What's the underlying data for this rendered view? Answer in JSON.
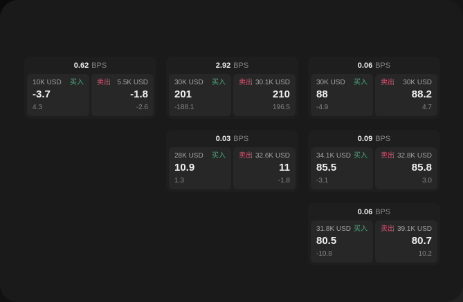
{
  "colors": {
    "page_bg": "#1a1a1a",
    "card_bg": "#1e1e1e",
    "tile_bg": "#272727",
    "buy_green": "#3fae7a",
    "sell_red": "#cf5570",
    "text_primary": "#f0f0f0",
    "text_secondary": "#a3a3a3",
    "text_muted": "#858585"
  },
  "labels": {
    "bps_unit": "BPS",
    "buy": "买入",
    "sell": "卖出"
  },
  "cards": [
    {
      "bps": "0.62",
      "buy": {
        "amount": "10K USD",
        "price": "-3.7",
        "change": "4.3"
      },
      "sell": {
        "amount": "5.5K USD",
        "price": "-1.8",
        "change": "-2.6"
      }
    },
    {
      "bps": "2.92",
      "buy": {
        "amount": "30K USD",
        "price": "201",
        "change": "-188.1"
      },
      "sell": {
        "amount": "30.1K USD",
        "price": "210",
        "change": "196.5"
      }
    },
    {
      "bps": "0.06",
      "buy": {
        "amount": "30K USD",
        "price": "88",
        "change": "-4.9"
      },
      "sell": {
        "amount": "30K USD",
        "price": "88.2",
        "change": "4.7"
      }
    },
    {
      "bps": "0.03",
      "buy": {
        "amount": "28K USD",
        "price": "10.9",
        "change": "1.3"
      },
      "sell": {
        "amount": "32.6K USD",
        "price": "11",
        "change": "-1.8"
      }
    },
    {
      "bps": "0.09",
      "buy": {
        "amount": "34.1K USD",
        "price": "85.5",
        "change": "-3.1"
      },
      "sell": {
        "amount": "32.8K USD",
        "price": "85.8",
        "change": "3.0"
      }
    },
    {
      "bps": "0.06",
      "buy": {
        "amount": "31.8K USD",
        "price": "80.5",
        "change": "-10.8"
      },
      "sell": {
        "amount": "39.1K USD",
        "price": "80.7",
        "change": "10.2"
      }
    }
  ]
}
